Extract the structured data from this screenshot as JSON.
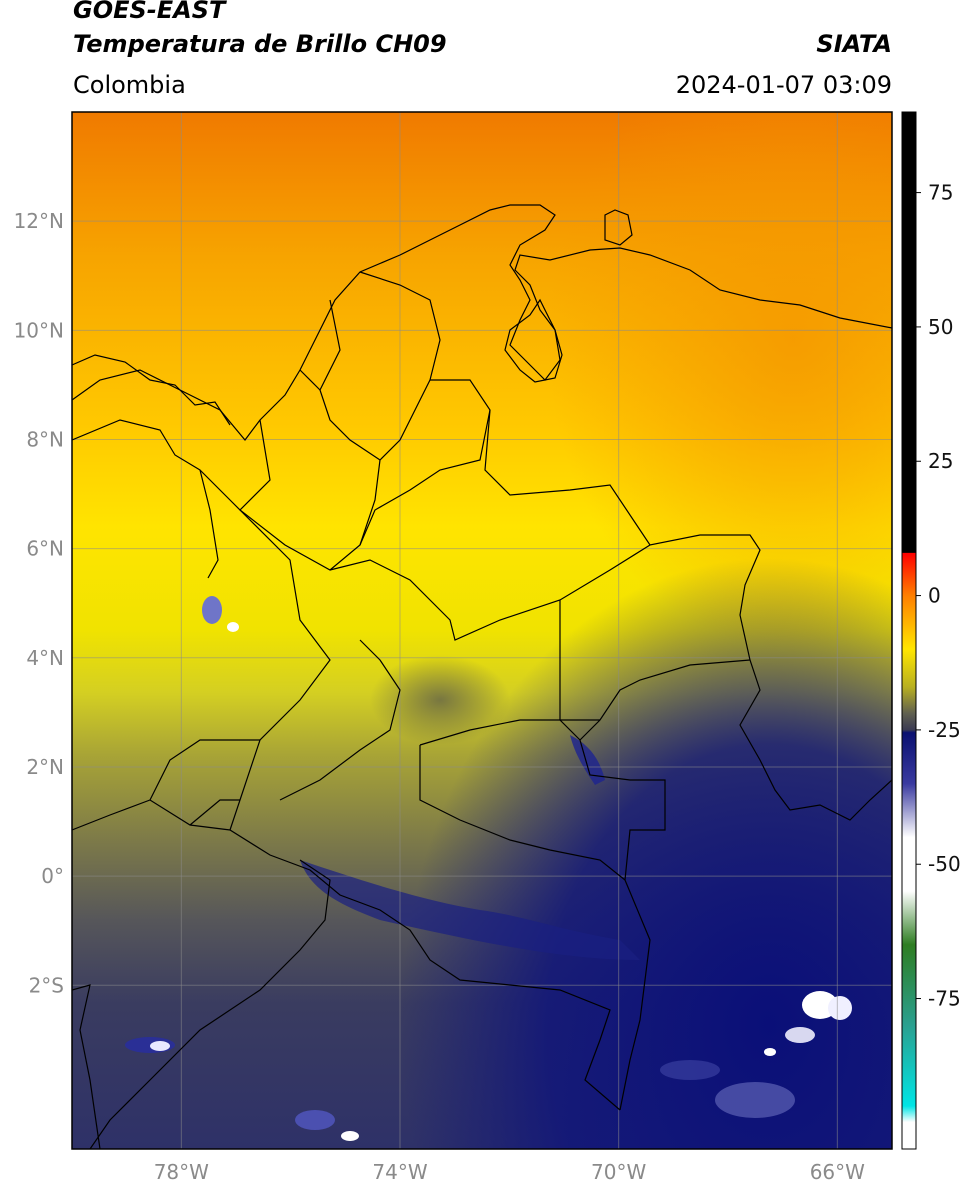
{
  "header": {
    "title_line1": "GOES-EAST",
    "title_line2": "Temperatura de Brillo CH09",
    "region": "Colombia",
    "brand": "SIATA",
    "timestamp": "2024-01-07 03:09"
  },
  "map": {
    "lon_range": [
      -80,
      -65
    ],
    "lat_range": [
      -5,
      14
    ],
    "lon_ticks": [
      {
        "value": -78,
        "label": "78°W"
      },
      {
        "value": -74,
        "label": "74°W"
      },
      {
        "value": -70,
        "label": "70°W"
      },
      {
        "value": -66,
        "label": "66°W"
      }
    ],
    "lat_ticks": [
      {
        "value": 12,
        "label": "12°N"
      },
      {
        "value": 10,
        "label": "10°N"
      },
      {
        "value": 8,
        "label": "8°N"
      },
      {
        "value": 6,
        "label": "6°N"
      },
      {
        "value": 4,
        "label": "4°N"
      },
      {
        "value": 2,
        "label": "2°N"
      },
      {
        "value": 0,
        "label": "0°"
      },
      {
        "value": -2,
        "label": "2°S"
      }
    ],
    "grid": true
  },
  "colorbar": {
    "range": [
      -103,
      90
    ],
    "ticks": [
      {
        "value": 75,
        "label": "75"
      },
      {
        "value": 50,
        "label": "50"
      },
      {
        "value": 25,
        "label": "25"
      },
      {
        "value": 0,
        "label": "0"
      },
      {
        "value": -25,
        "label": "-25"
      },
      {
        "value": -50,
        "label": "-50"
      },
      {
        "value": -75,
        "label": "-75"
      }
    ],
    "stops": [
      {
        "value": 90,
        "color": "#000000"
      },
      {
        "value": 8,
        "color": "#000000"
      },
      {
        "value": 7.9,
        "color": "#ff0000"
      },
      {
        "value": 0,
        "color": "#ff7f00"
      },
      {
        "value": -10,
        "color": "#ffe600"
      },
      {
        "value": -17,
        "color": "#b8b020"
      },
      {
        "value": -22,
        "color": "#5f5f50"
      },
      {
        "value": -25,
        "color": "#3a3a52"
      },
      {
        "value": -25.5,
        "color": "#0a1070"
      },
      {
        "value": -35,
        "color": "#3a3aa0"
      },
      {
        "value": -45,
        "color": "#ffffff"
      },
      {
        "value": -55,
        "color": "#ffffff"
      },
      {
        "value": -65,
        "color": "#2e7d22"
      },
      {
        "value": -80,
        "color": "#2aa090"
      },
      {
        "value": -95,
        "color": "#00e5e5"
      },
      {
        "value": -98,
        "color": "#ffffff"
      },
      {
        "value": -103,
        "color": "#ffffff"
      }
    ]
  }
}
